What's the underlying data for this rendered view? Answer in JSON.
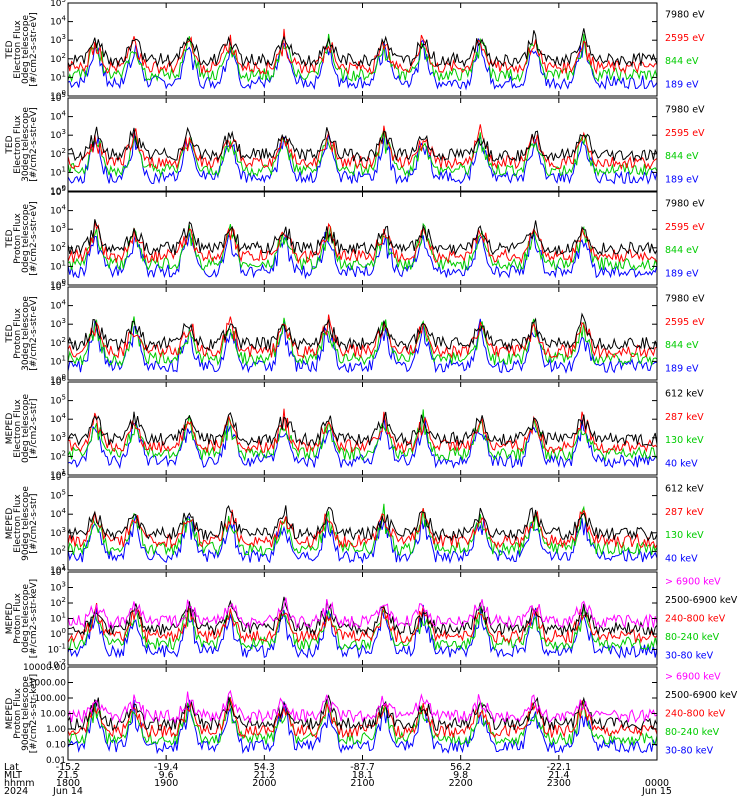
{
  "chart_data": {
    "type": "scatter",
    "time_axis": {
      "row_labels": [
        "Lat",
        "MLT",
        "hhmm",
        "2024"
      ],
      "ticks": [
        {
          "lat": "-15.2",
          "mlt": "21.5",
          "hhmm": "1800",
          "date": "Jun 14"
        },
        {
          "lat": "-19.4",
          "mlt": "9.6",
          "hhmm": "1900",
          "date": ""
        },
        {
          "lat": "54.3",
          "mlt": "21.2",
          "hhmm": "2000",
          "date": ""
        },
        {
          "lat": "-87.7",
          "mlt": "18.1",
          "hhmm": "2100",
          "date": ""
        },
        {
          "lat": "56.2",
          "mlt": "9.8",
          "hhmm": "2200",
          "date": ""
        },
        {
          "lat": "-22.1",
          "mlt": "21.4",
          "hhmm": "2300",
          "date": ""
        },
        {
          "lat": "",
          "mlt": "",
          "hhmm": "0000",
          "date": "Jun 15"
        }
      ]
    },
    "panels": [
      {
        "name": "ted-electron-0deg",
        "ylabel": [
          "TED",
          "Electron Flux",
          "0deg telescope",
          "[#/cm2-s-str-eV]"
        ],
        "ylog": [
          0,
          5
        ],
        "yticks": [
          "10^0",
          "10^1",
          "10^2",
          "10^3",
          "10^4",
          "10^5"
        ],
        "channels": [
          {
            "label": "7980 eV",
            "color": "#000000"
          },
          {
            "label": "2595 eV",
            "color": "#ff0000"
          },
          {
            "label": "844 eV",
            "color": "#00cc00"
          },
          {
            "label": "189 eV",
            "color": "#0000ff"
          }
        ]
      },
      {
        "name": "ted-electron-30deg",
        "ylabel": [
          "TED",
          "Electron Flux",
          "30deg telescope",
          "[#/cm2-s-str-eV]"
        ],
        "ylog": [
          0,
          5
        ],
        "yticks": [
          "10^0",
          "10^1",
          "10^2",
          "10^3",
          "10^4",
          "10^5"
        ],
        "channels": [
          {
            "label": "7980 eV",
            "color": "#000000"
          },
          {
            "label": "2595 eV",
            "color": "#ff0000"
          },
          {
            "label": "844 eV",
            "color": "#00cc00"
          },
          {
            "label": "189 eV",
            "color": "#0000ff"
          }
        ]
      },
      {
        "name": "ted-proton-0deg",
        "ylabel": [
          "TED",
          "Proton Flux",
          "0deg telescope",
          "[#/cm2-s-str-eV]"
        ],
        "ylog": [
          0,
          5
        ],
        "yticks": [
          "10^0",
          "10^1",
          "10^2",
          "10^3",
          "10^4",
          "10^5"
        ],
        "channels": [
          {
            "label": "7980 eV",
            "color": "#000000"
          },
          {
            "label": "2595 eV",
            "color": "#ff0000"
          },
          {
            "label": "844 eV",
            "color": "#00cc00"
          },
          {
            "label": "189 eV",
            "color": "#0000ff"
          }
        ]
      },
      {
        "name": "ted-proton-30deg",
        "ylabel": [
          "TED",
          "Proton Flux",
          "30deg telescope",
          "[#/cm2-s-str-eV]"
        ],
        "ylog": [
          0,
          5
        ],
        "yticks": [
          "10^0",
          "10^1",
          "10^2",
          "10^3",
          "10^4",
          "10^5"
        ],
        "channels": [
          {
            "label": "7980 eV",
            "color": "#000000"
          },
          {
            "label": "2595 eV",
            "color": "#ff0000"
          },
          {
            "label": "844 eV",
            "color": "#00cc00"
          },
          {
            "label": "189 eV",
            "color": "#0000ff"
          }
        ]
      },
      {
        "name": "meped-electron-0deg",
        "ylabel": [
          "MEPED",
          "Electron Flux",
          "0deg telescope",
          "[#/cm2-s-str]"
        ],
        "ylog": [
          1,
          6
        ],
        "yticks": [
          "10^1",
          "10^2",
          "10^3",
          "10^4",
          "10^5",
          "10^6"
        ],
        "channels": [
          {
            "label": "612 keV",
            "color": "#000000"
          },
          {
            "label": "287 keV",
            "color": "#ff0000"
          },
          {
            "label": "130 keV",
            "color": "#00cc00"
          },
          {
            "label": "40 keV",
            "color": "#0000ff"
          }
        ]
      },
      {
        "name": "meped-electron-90deg",
        "ylabel": [
          "MEPED",
          "Electron Flux",
          "90deg telescope",
          "[#/cm2-s-str]"
        ],
        "ylog": [
          1,
          6
        ],
        "yticks": [
          "10^1",
          "10^2",
          "10^3",
          "10^4",
          "10^5",
          "10^6"
        ],
        "channels": [
          {
            "label": "612 keV",
            "color": "#000000"
          },
          {
            "label": "287 keV",
            "color": "#ff0000"
          },
          {
            "label": "130 keV",
            "color": "#00cc00"
          },
          {
            "label": "40 keV",
            "color": "#0000ff"
          }
        ]
      },
      {
        "name": "meped-proton-0deg",
        "ylabel": [
          "MEPED",
          "Proton Flux",
          "0deg telescope",
          "[#/cm2-s-str-keV]"
        ],
        "ylog": [
          -2,
          4
        ],
        "yticks": [
          "10^-2",
          "10^-1",
          "10^0",
          "10^1",
          "10^2",
          "10^3",
          "10^4"
        ],
        "channels": [
          {
            "label": "> 6900 keV",
            "color": "#ff00ff"
          },
          {
            "label": "2500-6900 keV",
            "color": "#000000"
          },
          {
            "label": "240-800 keV",
            "color": "#ff0000"
          },
          {
            "label": "80-240 keV",
            "color": "#00cc00"
          },
          {
            "label": "30-80 keV",
            "color": "#0000ff"
          }
        ]
      },
      {
        "name": "meped-proton-90deg",
        "ylabel": [
          "MEPED",
          "Proton Flux",
          "90deg telescope",
          "[#/cm2-s-str-keV]"
        ],
        "ylog": [
          -2,
          4
        ],
        "yticks": [
          "0.01",
          "0.10",
          "1.00",
          "10.00",
          "100.00",
          "1000.00",
          "10000.00"
        ],
        "channels": [
          {
            "label": "> 6900 keV",
            "color": "#ff00ff"
          },
          {
            "label": "2500-6900 keV",
            "color": "#000000"
          },
          {
            "label": "240-800 keV",
            "color": "#ff0000"
          },
          {
            "label": "80-240 keV",
            "color": "#00cc00"
          },
          {
            "label": "30-80 keV",
            "color": "#0000ff"
          }
        ]
      }
    ]
  }
}
